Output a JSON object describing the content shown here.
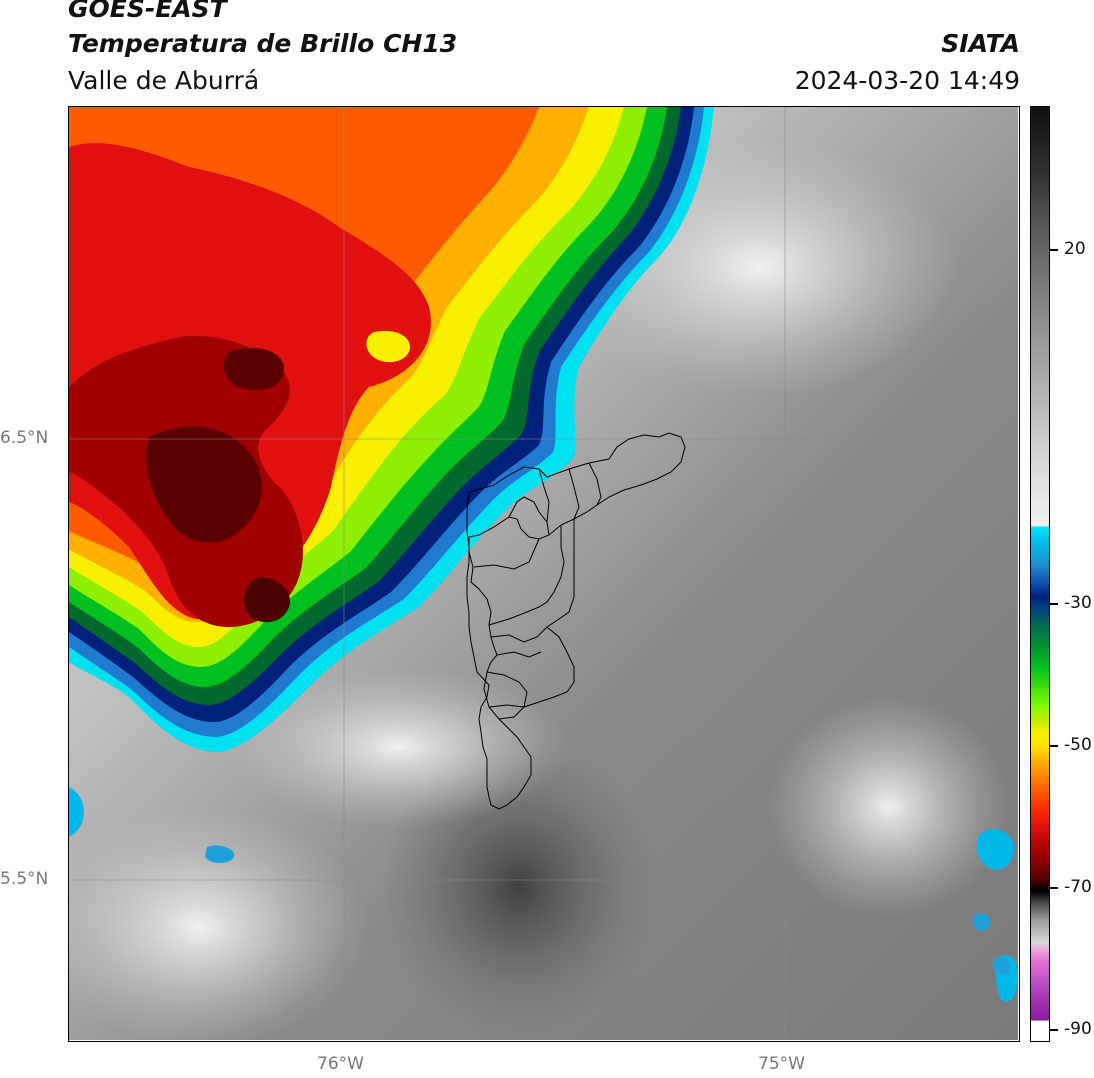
{
  "header": {
    "satellite": "GOES-EAST",
    "product": "Temperatura de Brillo CH13",
    "region": "Valle de Aburrá",
    "institution": "SIATA",
    "datetime": "2024-03-20 14:49"
  },
  "map": {
    "lat_labels": [
      "6.5°N",
      "5.5°N"
    ],
    "lon_labels": [
      "76°W",
      "75°W"
    ],
    "gridlines": true,
    "boundary_outline": "Valle de Aburrá municipalities"
  },
  "colorbar": {
    "ticks": [
      "20",
      "-30",
      "-50",
      "-70",
      "-90"
    ],
    "colormap_stops": [
      "#ffffff",
      "#9b1fb0",
      "#f08fd0",
      "#d8d8d8",
      "#000000",
      "#7a0000",
      "#ff0000",
      "#ff8c00",
      "#ffff00",
      "#7cfc00",
      "#009a2e",
      "#00207a",
      "#1fa0d8",
      "#00e6f0",
      "#f0f0f0",
      "#7a7a7a",
      "#101010"
    ]
  }
}
